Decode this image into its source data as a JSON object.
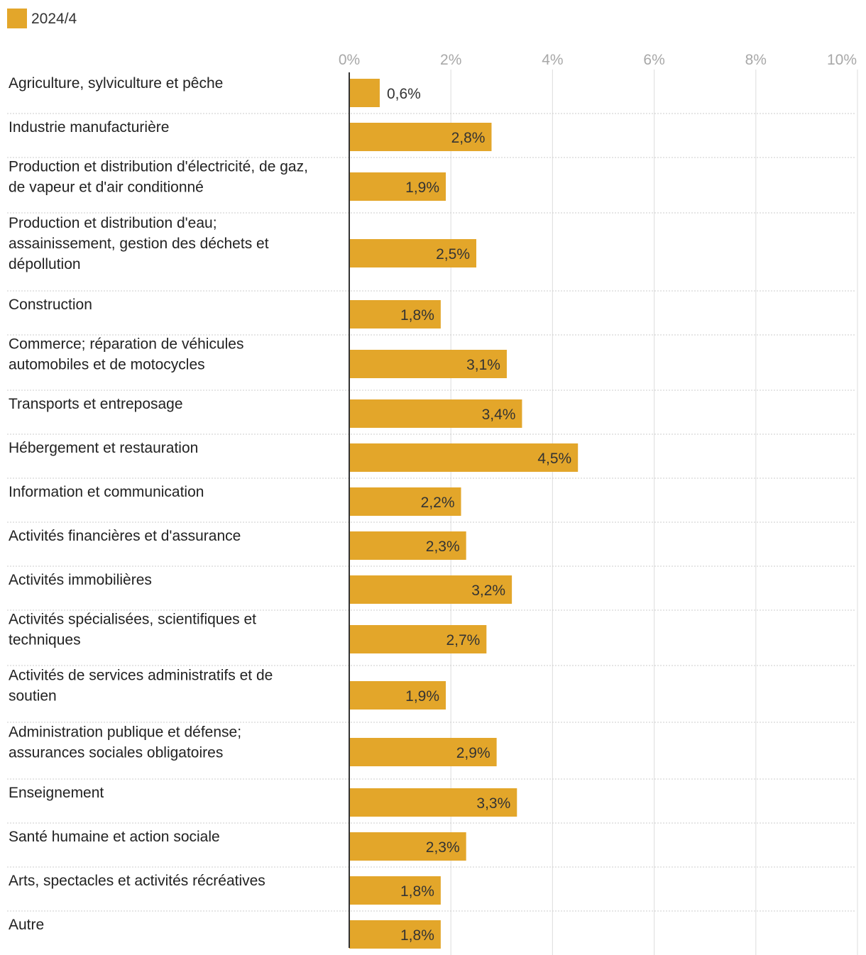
{
  "chart_data": {
    "type": "bar",
    "orientation": "horizontal",
    "series": [
      {
        "name": "2024/4",
        "color": "#E3A62A",
        "values": [
          0.6,
          2.8,
          1.9,
          2.5,
          1.8,
          3.1,
          3.4,
          4.5,
          2.2,
          2.3,
          3.2,
          2.7,
          1.9,
          2.9,
          3.3,
          2.3,
          1.8,
          1.8
        ]
      }
    ],
    "categories": [
      [
        "Agriculture, sylviculture et pêche"
      ],
      [
        "Industrie manufacturière"
      ],
      [
        "Production et distribution d'électricité, de gaz,",
        "de vapeur et d'air conditionné"
      ],
      [
        "Production et distribution d'eau;",
        "assainissement, gestion des déchets et",
        "dépollution"
      ],
      [
        "Construction"
      ],
      [
        "Commerce; réparation de véhicules",
        "automobiles et de motocycles"
      ],
      [
        "Transports et entreposage"
      ],
      [
        "Hébergement et restauration"
      ],
      [
        "Information et communication"
      ],
      [
        "Activités financières et d'assurance"
      ],
      [
        "Activités immobilières"
      ],
      [
        "Activités spécialisées, scientifiques et",
        "techniques"
      ],
      [
        "Activités de services administratifs et de",
        "soutien"
      ],
      [
        "Administration publique et défense;",
        "assurances sociales obligatoires"
      ],
      [
        "Enseignement"
      ],
      [
        "Santé humaine et action sociale"
      ],
      [
        "Arts, spectacles et activités récréatives"
      ],
      [
        "Autre"
      ]
    ],
    "value_labels": [
      "0,6%",
      "2,8%",
      "1,9%",
      "2,5%",
      "1,8%",
      "3,1%",
      "3,4%",
      "4,5%",
      "2,2%",
      "2,3%",
      "3,2%",
      "2,7%",
      "1,9%",
      "2,9%",
      "3,3%",
      "2,3%",
      "1,8%",
      "1,8%"
    ],
    "x_ticks": [
      0,
      2,
      4,
      6,
      8,
      10
    ],
    "x_tick_labels": [
      "0%",
      "2%",
      "4%",
      "6%",
      "8%",
      "10%"
    ],
    "xlim": [
      0,
      10
    ],
    "grid": true,
    "legend": "top-left",
    "colors": {
      "bar": "#E3A62A",
      "grid": "#e2e2e2",
      "separator": "#cccccc",
      "axis": "#333333",
      "tick_text": "#a8a8a8"
    }
  }
}
